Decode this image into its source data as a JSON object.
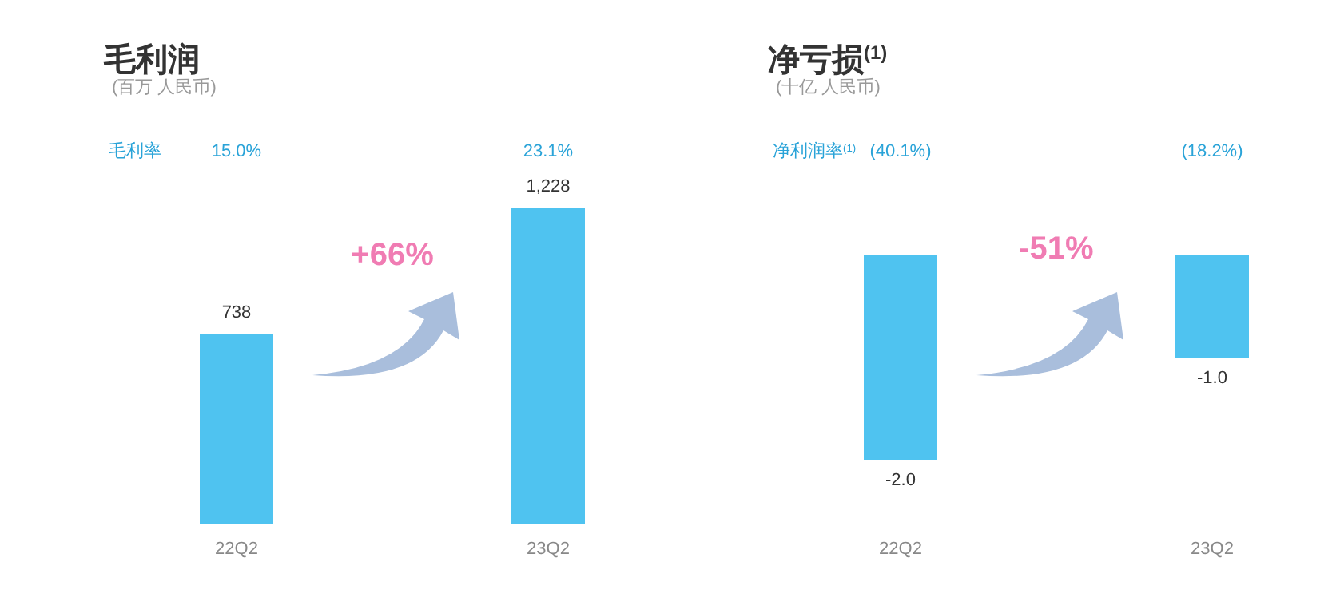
{
  "chart_data": [
    {
      "type": "bar",
      "title": "毛利润",
      "subtitle": "(百万 人民币)",
      "categories": [
        "22Q2",
        "23Q2"
      ],
      "values": [
        738,
        1228
      ],
      "color": "#4fc3f0",
      "value_labels": [
        "738",
        "1,228"
      ],
      "annotations": [
        "毛利率",
        "15.0%",
        "23.1%",
        "+66%"
      ]
    },
    {
      "type": "bar",
      "title": "净亏损$^{(1)}$",
      "subtitle": "(十亿 人民币)",
      "categories": [
        "22Q2",
        "23Q2"
      ],
      "values": [
        -2.0,
        -1.0
      ],
      "color": "#4fc3f0",
      "value_labels": [
        "-2.0",
        "-1.0"
      ],
      "annotations": [
        "净利润率$^{(1)}$",
        "(40.1%)",
        "(18.2%)",
        "-51%"
      ]
    }
  ]
}
